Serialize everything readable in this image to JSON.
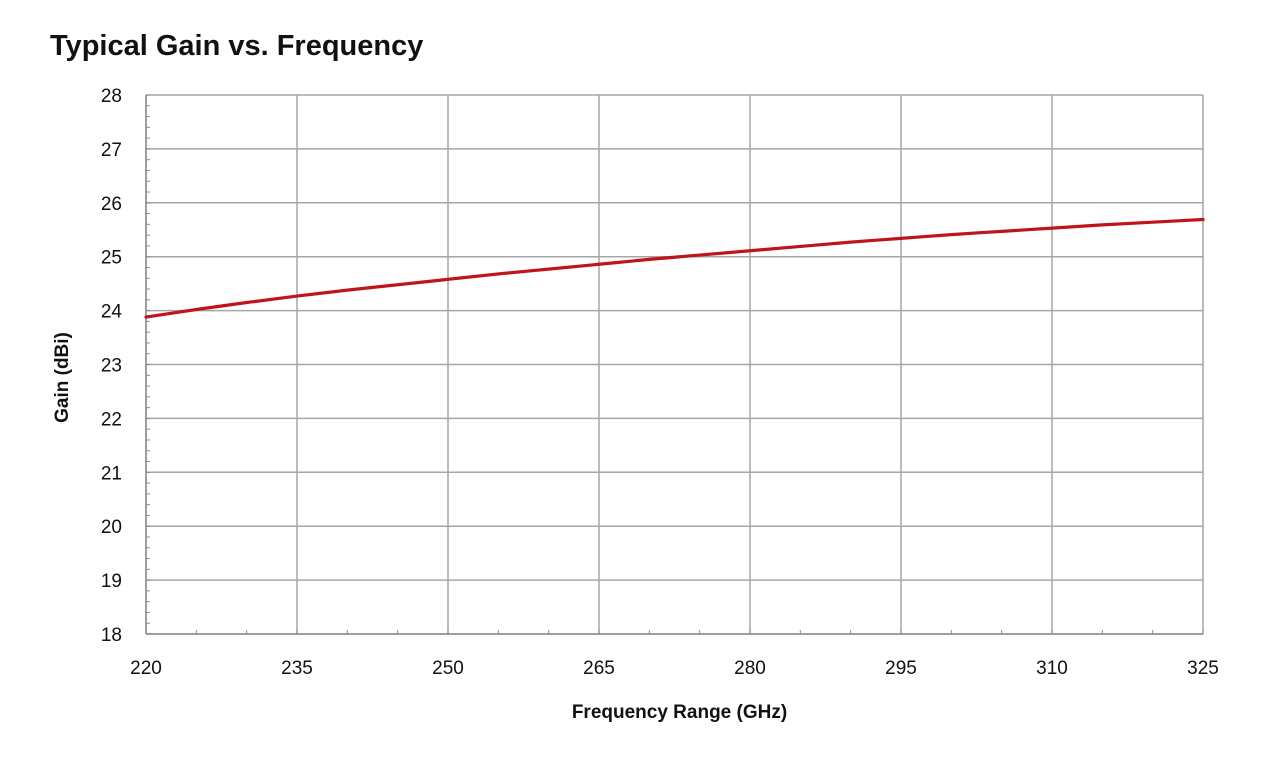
{
  "chart_data": {
    "type": "line",
    "title": "Typical Gain vs. Frequency",
    "xlabel": "Frequency Range (GHz)",
    "ylabel": "Gain (dBi)",
    "xlim": [
      220,
      325
    ],
    "ylim": [
      18,
      28
    ],
    "xticks": [
      "220",
      "235",
      "250",
      "265",
      "280",
      "295",
      "310",
      "325"
    ],
    "yticks": [
      "18",
      "19",
      "20",
      "21",
      "22",
      "23",
      "24",
      "25",
      "26",
      "27",
      "28"
    ],
    "grid": true,
    "legend": "none",
    "series": [
      {
        "color": "#c0141c",
        "x": [
          220,
          225,
          230,
          235,
          240,
          245,
          250,
          255,
          260,
          265,
          270,
          275,
          280,
          285,
          290,
          295,
          300,
          305,
          310,
          315,
          320,
          325
        ],
        "y": [
          23.88,
          24.02,
          24.15,
          24.27,
          24.38,
          24.48,
          24.58,
          24.68,
          24.77,
          24.86,
          24.95,
          25.03,
          25.11,
          25.19,
          25.27,
          25.34,
          25.41,
          25.47,
          25.53,
          25.59,
          25.64,
          25.69
        ]
      }
    ]
  }
}
